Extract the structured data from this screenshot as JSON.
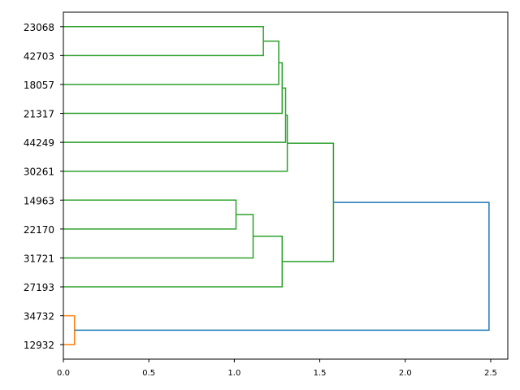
{
  "chart_data": {
    "type": "dendrogram",
    "orientation": "horizontal",
    "leaves": [
      "23068",
      "42703",
      "18057",
      "21317",
      "44249",
      "30261",
      "14963",
      "22170",
      "31721",
      "27193",
      "34732",
      "12932"
    ],
    "xlim": [
      0.0,
      2.6
    ],
    "x_ticks": [
      0.0,
      0.5,
      1.0,
      1.5,
      2.0,
      2.5
    ],
    "x_tick_labels": [
      "0.0",
      "0.5",
      "1.0",
      "1.5",
      "2.0",
      "2.5"
    ],
    "colors": {
      "cluster_green": "#2ca02c",
      "cluster_orange": "#ff7f0e",
      "above_threshold": "#1f77b4"
    },
    "links": [
      {
        "left": 0,
        "right": 1,
        "height": 1.17,
        "color": "#2ca02c"
      },
      {
        "left": 12,
        "right": 2,
        "height": 1.26,
        "color": "#2ca02c"
      },
      {
        "left": 13,
        "right": 3,
        "height": 1.28,
        "color": "#2ca02c"
      },
      {
        "left": 14,
        "right": 4,
        "height": 1.3,
        "color": "#2ca02c"
      },
      {
        "left": 15,
        "right": 5,
        "height": 1.31,
        "color": "#2ca02c"
      },
      {
        "left": 6,
        "right": 7,
        "height": 1.01,
        "color": "#2ca02c"
      },
      {
        "left": 17,
        "right": 8,
        "height": 1.11,
        "color": "#2ca02c"
      },
      {
        "left": 18,
        "right": 9,
        "height": 1.28,
        "color": "#2ca02c"
      },
      {
        "left": 16,
        "right": 19,
        "height": 1.58,
        "color": "#2ca02c"
      },
      {
        "left": 10,
        "right": 11,
        "height": 0.065,
        "color": "#ff7f0e"
      },
      {
        "left": 20,
        "right": 21,
        "height": 2.49,
        "color": "#1f77b4"
      }
    ]
  }
}
